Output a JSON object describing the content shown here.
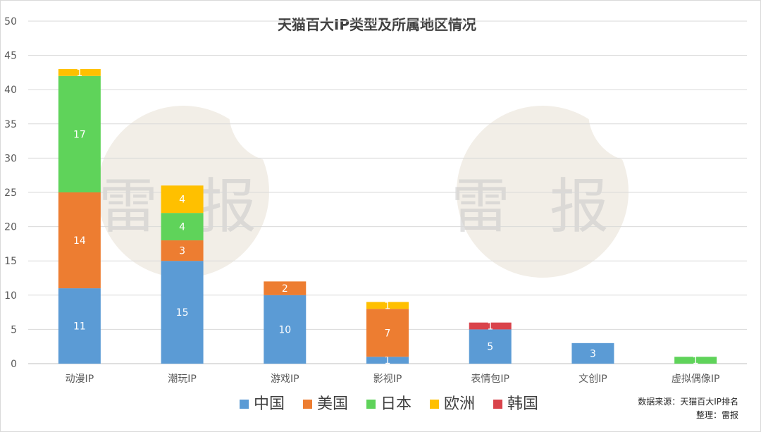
{
  "chart_data": {
    "type": "bar",
    "stacked": true,
    "title": "天猫百大IP类型及所属地区情况",
    "categories": [
      "动漫IP",
      "潮玩IP",
      "游戏IP",
      "影视IP",
      "表情包IP",
      "文创IP",
      "虚拟偶像IP"
    ],
    "series": [
      {
        "name": "中国",
        "color": "#5b9bd5",
        "values": [
          11,
          15,
          10,
          1,
          5,
          3,
          0
        ]
      },
      {
        "name": "美国",
        "color": "#ed7d31",
        "values": [
          14,
          3,
          2,
          7,
          0,
          0,
          0
        ]
      },
      {
        "name": "日本",
        "color": "#5fd35a",
        "values": [
          17,
          4,
          0,
          0,
          0,
          0,
          1
        ]
      },
      {
        "name": "欧洲",
        "color": "#ffc000",
        "values": [
          1,
          4,
          0,
          1,
          0,
          0,
          0
        ]
      },
      {
        "name": "韩国",
        "color": "#d9434b",
        "values": [
          0,
          0,
          0,
          0,
          1,
          0,
          0
        ]
      }
    ],
    "ylim": [
      0,
      50
    ],
    "yticks": [
      0,
      5,
      10,
      15,
      20,
      25,
      30,
      35,
      40,
      45,
      50
    ],
    "grid": true,
    "legend_position": "bottom"
  },
  "watermark": [
    "雷",
    "报"
  ],
  "source_note": {
    "line1": "数据来源：天猫百大IP排名",
    "line2": "整理：雷报"
  }
}
